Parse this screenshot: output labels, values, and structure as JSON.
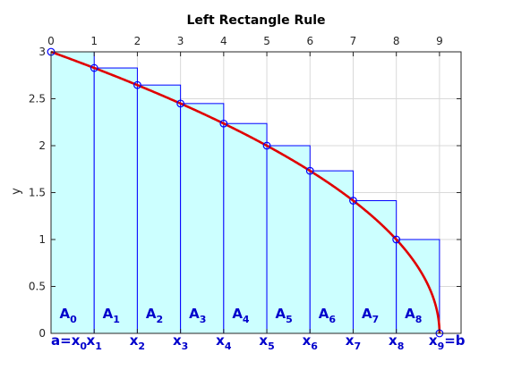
{
  "chart_data": {
    "type": "area",
    "title": "Left Rectangle Rule",
    "ylabel": "y",
    "xlabel": "",
    "xlim": [
      0,
      9.5
    ],
    "ylim": [
      0,
      3
    ],
    "x_ticks": [
      "0",
      "1",
      "2",
      "3",
      "4",
      "5",
      "6",
      "7",
      "8",
      "9"
    ],
    "y_ticks": [
      "0",
      "0.5",
      "1",
      "1.5",
      "2",
      "2.5",
      "3"
    ],
    "x_tick_positions": "top",
    "grid": true,
    "function": "y = sqrt(9 - x)",
    "curve_samples": [
      {
        "x": 0,
        "y": 3
      },
      {
        "x": 1,
        "y": 2.828
      },
      {
        "x": 2,
        "y": 2.646
      },
      {
        "x": 3,
        "y": 2.449
      },
      {
        "x": 4,
        "y": 2.236
      },
      {
        "x": 5,
        "y": 2
      },
      {
        "x": 6,
        "y": 1.732
      },
      {
        "x": 7,
        "y": 1.414
      },
      {
        "x": 8,
        "y": 1
      },
      {
        "x": 9,
        "y": 0
      }
    ],
    "rectangles": [
      {
        "x0": 0,
        "x1": 1,
        "height": 3
      },
      {
        "x0": 1,
        "x1": 2,
        "height": 2.828
      },
      {
        "x0": 2,
        "x1": 3,
        "height": 2.646
      },
      {
        "x0": 3,
        "x1": 4,
        "height": 2.449
      },
      {
        "x0": 4,
        "x1": 5,
        "height": 2.236
      },
      {
        "x0": 5,
        "x1": 6,
        "height": 2
      },
      {
        "x0": 6,
        "x1": 7,
        "height": 1.732
      },
      {
        "x0": 7,
        "x1": 8,
        "height": 1.414
      },
      {
        "x0": 8,
        "x1": 9,
        "height": 1
      }
    ],
    "area_labels": [
      {
        "main": "A",
        "sub": "0"
      },
      {
        "main": "A",
        "sub": "1"
      },
      {
        "main": "A",
        "sub": "2"
      },
      {
        "main": "A",
        "sub": "3"
      },
      {
        "main": "A",
        "sub": "4"
      },
      {
        "main": "A",
        "sub": "5"
      },
      {
        "main": "A",
        "sub": "6"
      },
      {
        "main": "A",
        "sub": "7"
      },
      {
        "main": "A",
        "sub": "8"
      }
    ],
    "x_annotations": [
      {
        "pre": "a=",
        "main": "x",
        "sub": "0",
        "post": ""
      },
      {
        "pre": "",
        "main": "x",
        "sub": "1",
        "post": ""
      },
      {
        "pre": "",
        "main": "x",
        "sub": "2",
        "post": ""
      },
      {
        "pre": "",
        "main": "x",
        "sub": "3",
        "post": ""
      },
      {
        "pre": "",
        "main": "x",
        "sub": "4",
        "post": ""
      },
      {
        "pre": "",
        "main": "x",
        "sub": "5",
        "post": ""
      },
      {
        "pre": "",
        "main": "x",
        "sub": "6",
        "post": ""
      },
      {
        "pre": "",
        "main": "x",
        "sub": "7",
        "post": ""
      },
      {
        "pre": "",
        "main": "x",
        "sub": "8",
        "post": ""
      },
      {
        "pre": "",
        "main": "x",
        "sub": "9",
        "post": "=b"
      }
    ],
    "colors": {
      "rect_fill": "#ccffff",
      "rect_edge": "#0000ff",
      "curve": "#e00000",
      "marker": "#0000ff",
      "labels": "#0000cc",
      "grid": "#d9d9d9",
      "axes": "#262626"
    }
  }
}
